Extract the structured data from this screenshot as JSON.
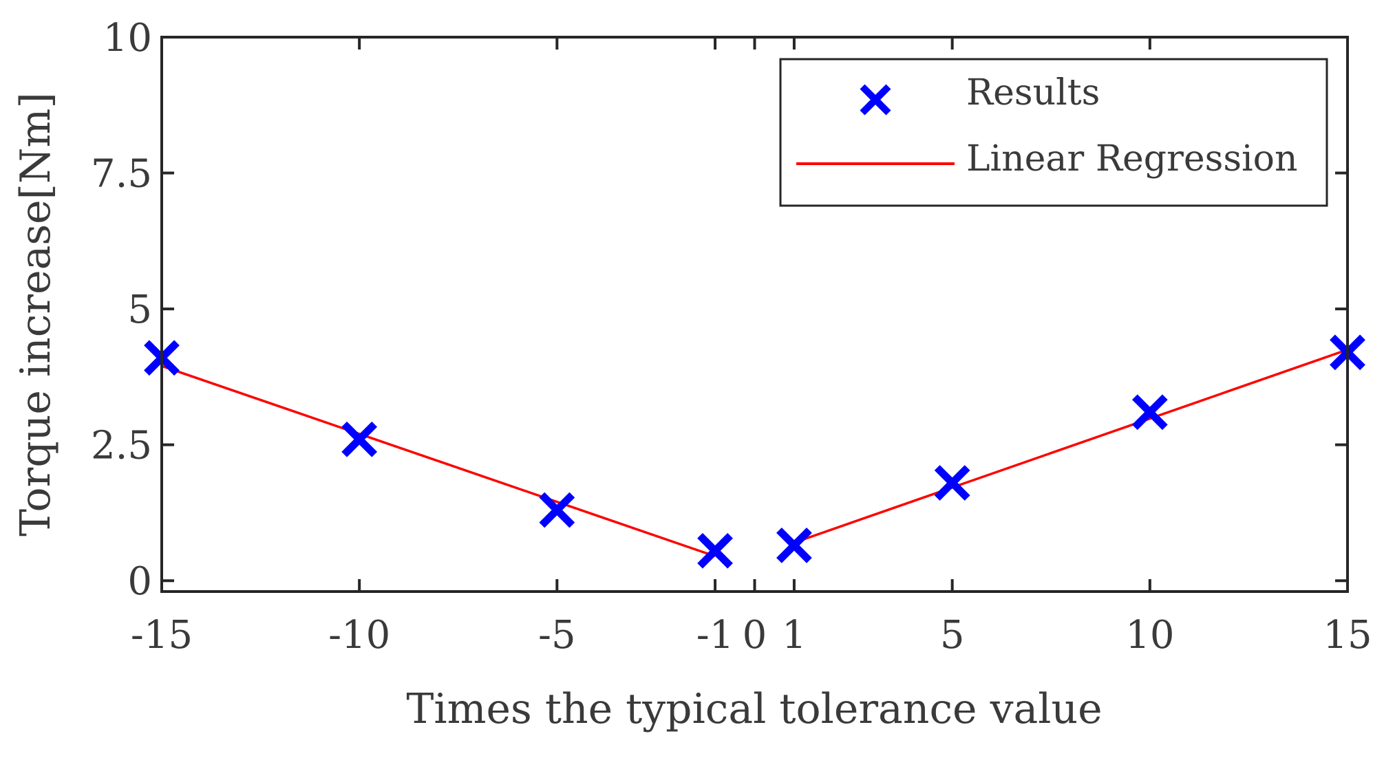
{
  "chart_data": {
    "type": "scatter",
    "title": "",
    "xlabel": "Times the typical tolerance value",
    "ylabel": "Torque increase[Nm]",
    "xlim": [
      -15,
      15
    ],
    "ylim": [
      -0.2,
      10
    ],
    "x_ticks": [
      -15,
      -10,
      -5,
      -1,
      0,
      1,
      5,
      10,
      15
    ],
    "x_tick_labels": [
      "-15",
      "-10",
      "-5",
      "-1",
      "0",
      "1",
      "5",
      "10",
      "15"
    ],
    "y_ticks": [
      0,
      2.5,
      5,
      7.5,
      10
    ],
    "y_tick_labels": [
      "0",
      "2.5",
      "5",
      "7.5",
      "10"
    ],
    "series": [
      {
        "name": "Results",
        "kind": "marker",
        "marker": "x",
        "color": "#0000ff",
        "x": [
          -15,
          -10,
          -5,
          -1,
          1,
          5,
          10,
          15
        ],
        "y": [
          4.1,
          2.6,
          1.3,
          0.55,
          0.65,
          1.8,
          3.1,
          4.2
        ]
      },
      {
        "name": "Linear Regression",
        "kind": "line",
        "color": "#ff0000",
        "segments": [
          {
            "x": [
              -15,
              -1
            ],
            "y": [
              3.95,
              0.45
            ]
          },
          {
            "x": [
              1,
              15
            ],
            "y": [
              0.7,
              4.25
            ]
          }
        ]
      }
    ],
    "legend": {
      "position": "top-right",
      "entries": [
        "Results",
        "Linear Regression"
      ]
    },
    "grid": false
  }
}
